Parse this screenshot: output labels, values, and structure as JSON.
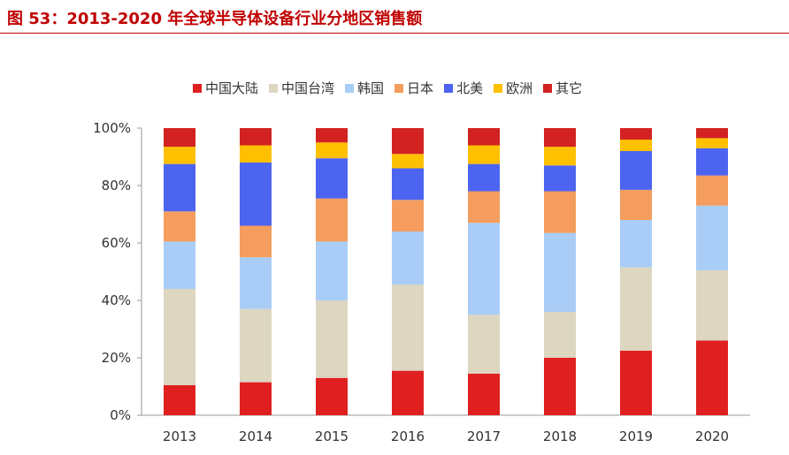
{
  "title": "图 53：2013-2020 年全球半导体设备行业分地区销售额",
  "chart_data": {
    "type": "bar",
    "stacked": true,
    "categories": [
      "2013",
      "2014",
      "2015",
      "2016",
      "2017",
      "2018",
      "2019",
      "2020"
    ],
    "series": [
      {
        "name": "中国大陆",
        "color": "#e02020",
        "values": [
          10.5,
          11.5,
          13.0,
          15.5,
          14.5,
          20.0,
          22.5,
          26.0
        ]
      },
      {
        "name": "中国台湾",
        "color": "#ddd6c1",
        "values": [
          33.5,
          25.5,
          27.0,
          30.0,
          20.5,
          16.0,
          29.0,
          24.5
        ]
      },
      {
        "name": "韩国",
        "color": "#a9cdf7",
        "values": [
          16.5,
          18.0,
          20.5,
          18.5,
          32.0,
          27.5,
          16.5,
          22.5
        ]
      },
      {
        "name": "日本",
        "color": "#f59d5e",
        "values": [
          10.5,
          11.0,
          15.0,
          11.0,
          11.0,
          14.5,
          10.5,
          10.5
        ]
      },
      {
        "name": "北美",
        "color": "#4d64f0",
        "values": [
          16.5,
          22.0,
          14.0,
          11.0,
          9.5,
          9.0,
          13.5,
          9.5
        ]
      },
      {
        "name": "欧洲",
        "color": "#ffc000",
        "values": [
          6.0,
          6.0,
          5.5,
          5.0,
          6.5,
          6.5,
          4.0,
          3.5
        ]
      },
      {
        "name": "其它",
        "color": "#d32222",
        "values": [
          6.5,
          6.0,
          5.0,
          9.0,
          6.0,
          6.5,
          4.0,
          3.5
        ]
      }
    ],
    "yticks": [
      "0%",
      "20%",
      "40%",
      "60%",
      "80%",
      "100%"
    ],
    "ylim": [
      0,
      100
    ],
    "legend_position": "top",
    "grid": false
  }
}
